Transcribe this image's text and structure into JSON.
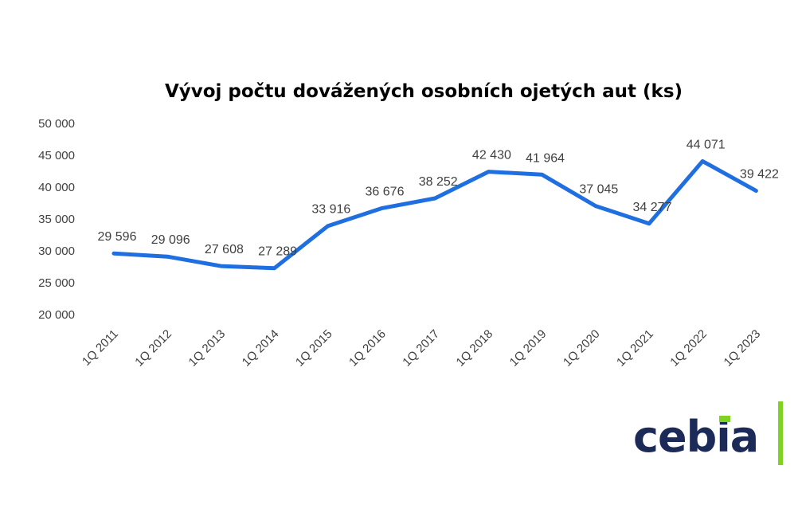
{
  "chart_data": {
    "type": "line",
    "title": "Vývoj počtu dovážených osobních ojetých aut (ks)",
    "categories": [
      "1Q 2011",
      "1Q 2012",
      "1Q 2013",
      "1Q 2014",
      "1Q 2015",
      "1Q 2016",
      "1Q 2017",
      "1Q 2018",
      "1Q 2019",
      "1Q 2020",
      "1Q 2021",
      "1Q 2022",
      "1Q 2023"
    ],
    "values": [
      29596,
      29096,
      27608,
      27289,
      33916,
      36676,
      38252,
      42430,
      41964,
      37045,
      34277,
      44071,
      39422
    ],
    "data_labels": [
      "29 596",
      "29 096",
      "27 608",
      "27 289",
      "33 916",
      "36 676",
      "38 252",
      "42 430",
      "41 964",
      "37 045",
      "34 277",
      "44 071",
      "39 422"
    ],
    "ylim": [
      20000,
      50000
    ],
    "yticks": [
      20000,
      25000,
      30000,
      35000,
      40000,
      45000,
      50000
    ],
    "ytick_labels": [
      "20 000",
      "25 000",
      "30 000",
      "35 000",
      "40 000",
      "45 000",
      "50 000"
    ],
    "grid": false,
    "line_color": "#1f6fe0"
  },
  "logo": {
    "text": "cebia",
    "text_color": "#1c2a57",
    "accent_color": "#7ed321"
  }
}
